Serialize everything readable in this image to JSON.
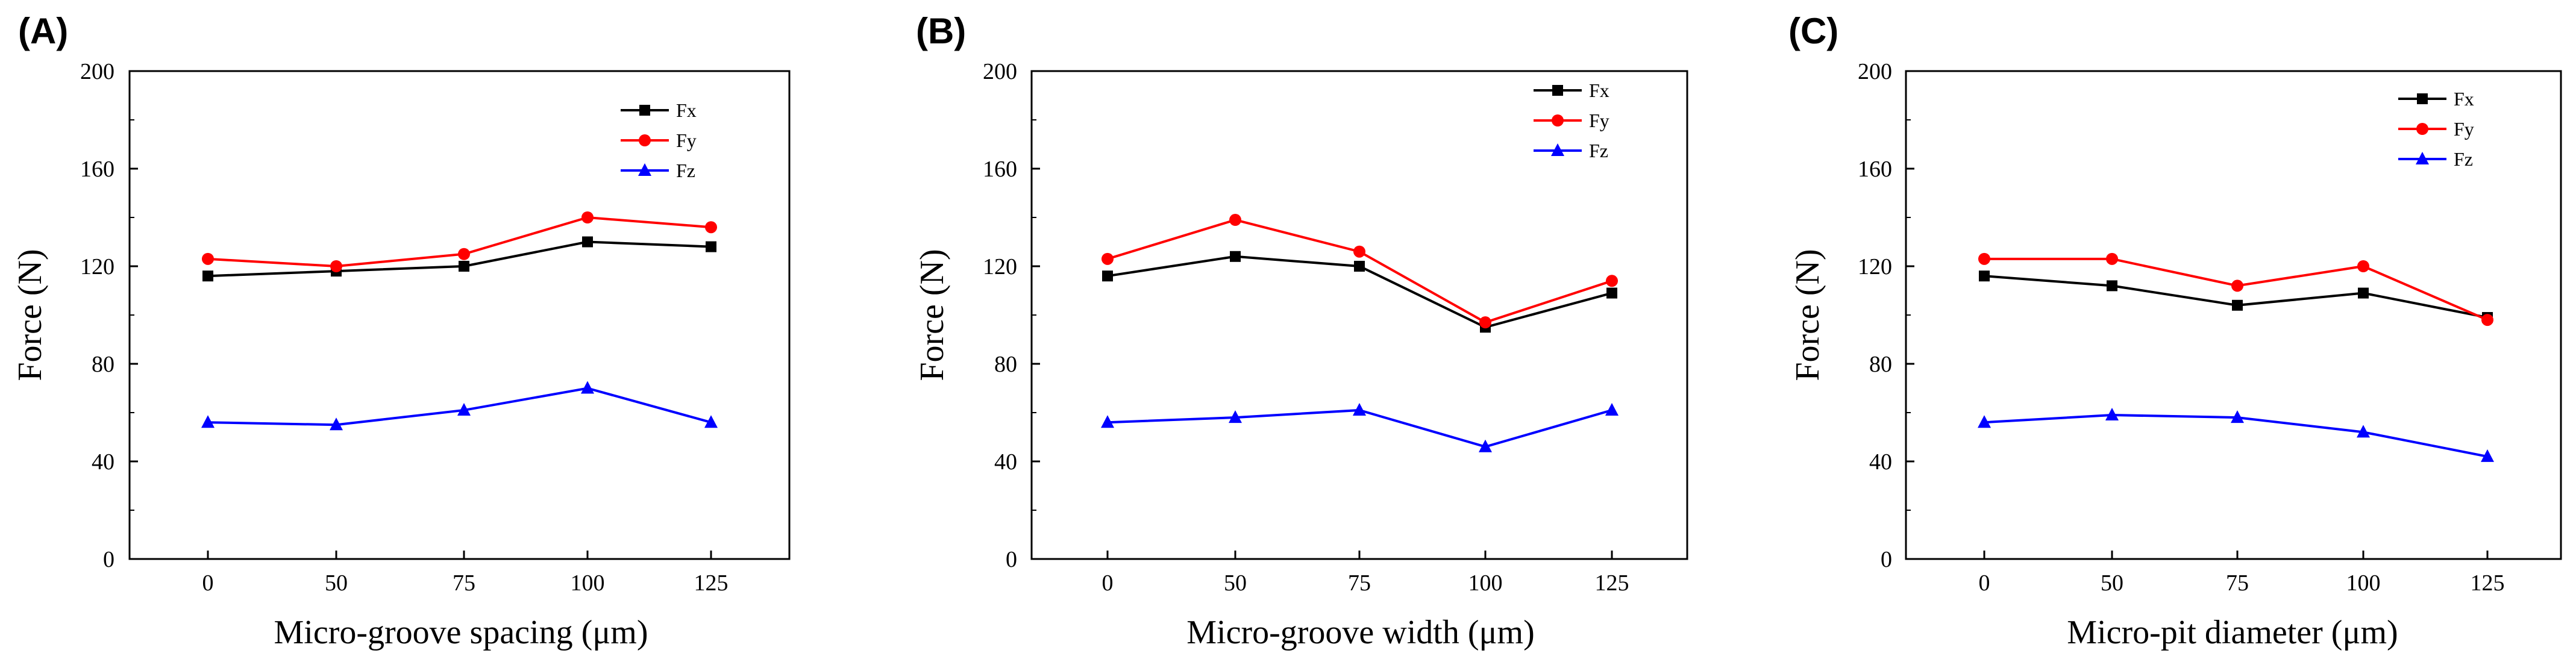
{
  "chart_data": [
    {
      "type": "line",
      "panel_label": "(A)",
      "categories": [
        "0",
        "50",
        "75",
        "100",
        "125"
      ],
      "xlabel": "Micro-groove spacing (μm)",
      "ylabel": "Force (N)",
      "ylim": [
        0,
        200
      ],
      "yticks": [
        "0",
        "40",
        "80",
        "120",
        "160",
        "200"
      ],
      "legend_position": "top-right",
      "grid": false,
      "series": [
        {
          "name": "Fx",
          "color": "#000000",
          "marker": "square",
          "values": [
            116,
            118,
            120,
            130,
            128
          ]
        },
        {
          "name": "Fy",
          "color": "#ff0000",
          "marker": "circle",
          "values": [
            123,
            120,
            125,
            140,
            136
          ]
        },
        {
          "name": "Fz",
          "color": "#0000ff",
          "marker": "triangle",
          "values": [
            56,
            55,
            61,
            70,
            56
          ]
        }
      ]
    },
    {
      "type": "line",
      "panel_label": "(B)",
      "categories": [
        "0",
        "50",
        "75",
        "100",
        "125"
      ],
      "xlabel": "Micro-groove width (μm)",
      "ylabel": "Force (N)",
      "ylim": [
        0,
        200
      ],
      "yticks": [
        "0",
        "40",
        "80",
        "120",
        "160",
        "200"
      ],
      "legend_position": "top-right",
      "grid": false,
      "series": [
        {
          "name": "Fx",
          "color": "#000000",
          "marker": "square",
          "values": [
            116,
            124,
            120,
            95,
            109
          ]
        },
        {
          "name": "Fy",
          "color": "#ff0000",
          "marker": "circle",
          "values": [
            123,
            139,
            126,
            97,
            114
          ]
        },
        {
          "name": "Fz",
          "color": "#0000ff",
          "marker": "triangle",
          "values": [
            56,
            58,
            61,
            46,
            61
          ]
        }
      ]
    },
    {
      "type": "line",
      "panel_label": "(C)",
      "categories": [
        "0",
        "50",
        "75",
        "100",
        "125"
      ],
      "xlabel": "Micro-pit diameter (μm)",
      "ylabel": "Force (N)",
      "ylim": [
        0,
        200
      ],
      "yticks": [
        "0",
        "40",
        "80",
        "120",
        "160",
        "200"
      ],
      "legend_position": "top-right",
      "grid": false,
      "series": [
        {
          "name": "Fx",
          "color": "#000000",
          "marker": "square",
          "values": [
            116,
            112,
            104,
            109,
            99
          ]
        },
        {
          "name": "Fy",
          "color": "#ff0000",
          "marker": "circle",
          "values": [
            123,
            123,
            112,
            120,
            98
          ]
        },
        {
          "name": "Fz",
          "color": "#0000ff",
          "marker": "triangle",
          "values": [
            56,
            59,
            58,
            52,
            42
          ]
        }
      ]
    }
  ]
}
